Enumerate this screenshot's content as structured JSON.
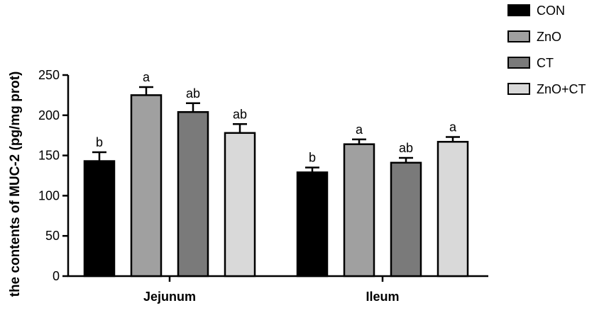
{
  "chart_data": {
    "type": "bar",
    "ylabel": "the contents of MUC-2 (pg/mg prot)",
    "xlabel": "",
    "ylim": [
      0,
      250
    ],
    "yticks": [
      0,
      50,
      100,
      150,
      200,
      250
    ],
    "categories": [
      "Jejunum",
      "Ileum"
    ],
    "series": [
      {
        "name": "CON",
        "color": "#000000",
        "values": [
          143,
          129
        ],
        "errors": [
          11,
          6
        ],
        "letters": [
          "b",
          "b"
        ]
      },
      {
        "name": "ZnO",
        "color": "#a0a0a0",
        "values": [
          225,
          164
        ],
        "errors": [
          10,
          6
        ],
        "letters": [
          "a",
          "a"
        ]
      },
      {
        "name": "CT",
        "color": "#7a7a7a",
        "values": [
          204,
          141
        ],
        "errors": [
          11,
          6
        ],
        "letters": [
          "ab",
          "ab"
        ]
      },
      {
        "name": "ZnO+CT",
        "color": "#d9d9d9",
        "values": [
          178,
          167
        ],
        "errors": [
          11,
          6
        ],
        "letters": [
          "ab",
          "a"
        ]
      }
    ],
    "grid": false,
    "legend_position": "top-right"
  }
}
